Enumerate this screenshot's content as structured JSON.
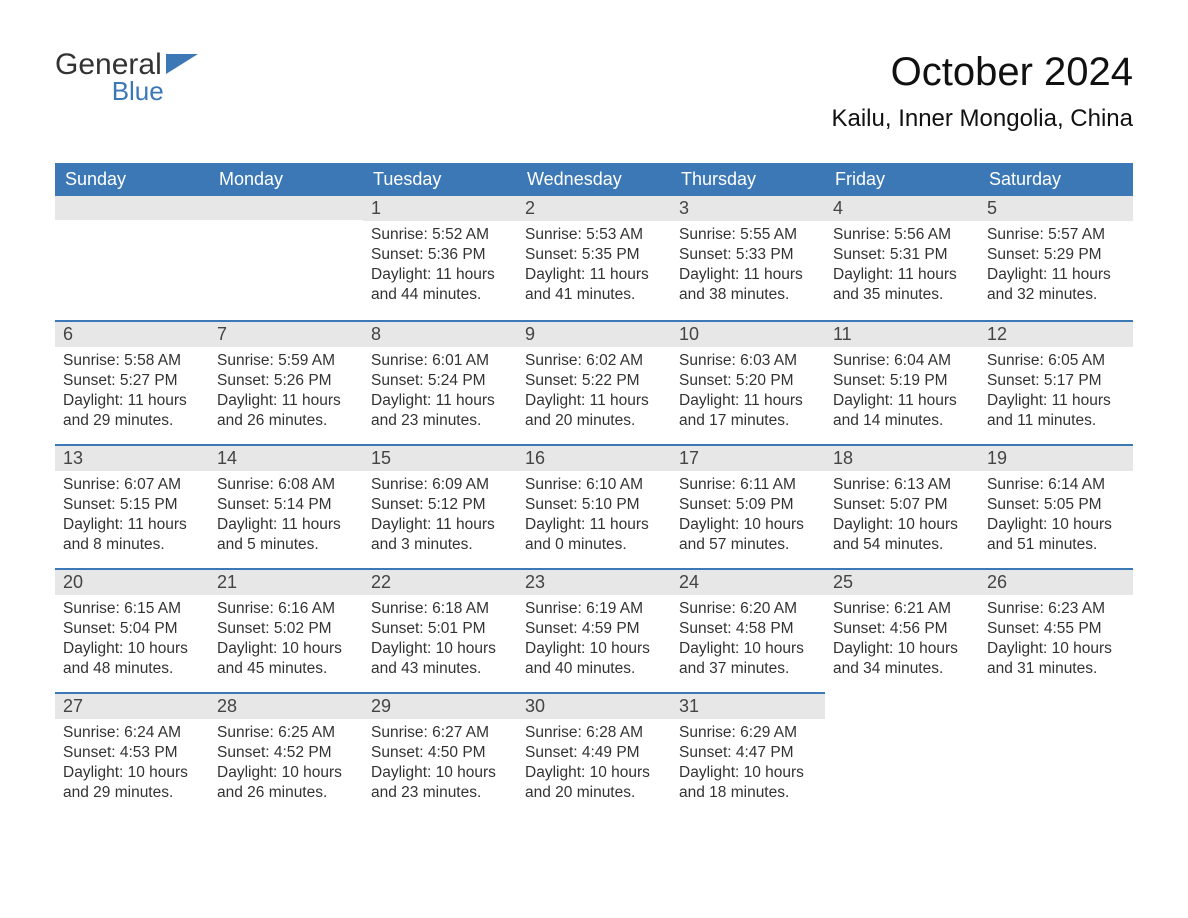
{
  "brand": {
    "top": "General",
    "bottom": "Blue",
    "flag_color": "#3b78b5"
  },
  "title": "October 2024",
  "location": "Kailu, Inner Mongolia, China",
  "colors": {
    "header_bg": "#3b78b5",
    "header_text": "#ffffff",
    "daynum_bg": "#e7e7e7",
    "daynum_border": "#3b78b5",
    "body_text": "#333333",
    "page_bg": "#ffffff"
  },
  "typography": {
    "title_fontsize": 40,
    "location_fontsize": 24,
    "dayheader_fontsize": 18,
    "daynum_fontsize": 18,
    "cell_fontsize": 15.5
  },
  "weekdays": [
    "Sunday",
    "Monday",
    "Tuesday",
    "Wednesday",
    "Thursday",
    "Friday",
    "Saturday"
  ],
  "weeks": [
    [
      {
        "blank": true
      },
      {
        "blank": true
      },
      {
        "n": "1",
        "sunrise": "5:52 AM",
        "sunset": "5:36 PM",
        "daylight": "11 hours and 44 minutes."
      },
      {
        "n": "2",
        "sunrise": "5:53 AM",
        "sunset": "5:35 PM",
        "daylight": "11 hours and 41 minutes."
      },
      {
        "n": "3",
        "sunrise": "5:55 AM",
        "sunset": "5:33 PM",
        "daylight": "11 hours and 38 minutes."
      },
      {
        "n": "4",
        "sunrise": "5:56 AM",
        "sunset": "5:31 PM",
        "daylight": "11 hours and 35 minutes."
      },
      {
        "n": "5",
        "sunrise": "5:57 AM",
        "sunset": "5:29 PM",
        "daylight": "11 hours and 32 minutes."
      }
    ],
    [
      {
        "n": "6",
        "sunrise": "5:58 AM",
        "sunset": "5:27 PM",
        "daylight": "11 hours and 29 minutes."
      },
      {
        "n": "7",
        "sunrise": "5:59 AM",
        "sunset": "5:26 PM",
        "daylight": "11 hours and 26 minutes."
      },
      {
        "n": "8",
        "sunrise": "6:01 AM",
        "sunset": "5:24 PM",
        "daylight": "11 hours and 23 minutes."
      },
      {
        "n": "9",
        "sunrise": "6:02 AM",
        "sunset": "5:22 PM",
        "daylight": "11 hours and 20 minutes."
      },
      {
        "n": "10",
        "sunrise": "6:03 AM",
        "sunset": "5:20 PM",
        "daylight": "11 hours and 17 minutes."
      },
      {
        "n": "11",
        "sunrise": "6:04 AM",
        "sunset": "5:19 PM",
        "daylight": "11 hours and 14 minutes."
      },
      {
        "n": "12",
        "sunrise": "6:05 AM",
        "sunset": "5:17 PM",
        "daylight": "11 hours and 11 minutes."
      }
    ],
    [
      {
        "n": "13",
        "sunrise": "6:07 AM",
        "sunset": "5:15 PM",
        "daylight": "11 hours and 8 minutes."
      },
      {
        "n": "14",
        "sunrise": "6:08 AM",
        "sunset": "5:14 PM",
        "daylight": "11 hours and 5 minutes."
      },
      {
        "n": "15",
        "sunrise": "6:09 AM",
        "sunset": "5:12 PM",
        "daylight": "11 hours and 3 minutes."
      },
      {
        "n": "16",
        "sunrise": "6:10 AM",
        "sunset": "5:10 PM",
        "daylight": "11 hours and 0 minutes."
      },
      {
        "n": "17",
        "sunrise": "6:11 AM",
        "sunset": "5:09 PM",
        "daylight": "10 hours and 57 minutes."
      },
      {
        "n": "18",
        "sunrise": "6:13 AM",
        "sunset": "5:07 PM",
        "daylight": "10 hours and 54 minutes."
      },
      {
        "n": "19",
        "sunrise": "6:14 AM",
        "sunset": "5:05 PM",
        "daylight": "10 hours and 51 minutes."
      }
    ],
    [
      {
        "n": "20",
        "sunrise": "6:15 AM",
        "sunset": "5:04 PM",
        "daylight": "10 hours and 48 minutes."
      },
      {
        "n": "21",
        "sunrise": "6:16 AM",
        "sunset": "5:02 PM",
        "daylight": "10 hours and 45 minutes."
      },
      {
        "n": "22",
        "sunrise": "6:18 AM",
        "sunset": "5:01 PM",
        "daylight": "10 hours and 43 minutes."
      },
      {
        "n": "23",
        "sunrise": "6:19 AM",
        "sunset": "4:59 PM",
        "daylight": "10 hours and 40 minutes."
      },
      {
        "n": "24",
        "sunrise": "6:20 AM",
        "sunset": "4:58 PM",
        "daylight": "10 hours and 37 minutes."
      },
      {
        "n": "25",
        "sunrise": "6:21 AM",
        "sunset": "4:56 PM",
        "daylight": "10 hours and 34 minutes."
      },
      {
        "n": "26",
        "sunrise": "6:23 AM",
        "sunset": "4:55 PM",
        "daylight": "10 hours and 31 minutes."
      }
    ],
    [
      {
        "n": "27",
        "sunrise": "6:24 AM",
        "sunset": "4:53 PM",
        "daylight": "10 hours and 29 minutes."
      },
      {
        "n": "28",
        "sunrise": "6:25 AM",
        "sunset": "4:52 PM",
        "daylight": "10 hours and 26 minutes."
      },
      {
        "n": "29",
        "sunrise": "6:27 AM",
        "sunset": "4:50 PM",
        "daylight": "10 hours and 23 minutes."
      },
      {
        "n": "30",
        "sunrise": "6:28 AM",
        "sunset": "4:49 PM",
        "daylight": "10 hours and 20 minutes."
      },
      {
        "n": "31",
        "sunrise": "6:29 AM",
        "sunset": "4:47 PM",
        "daylight": "10 hours and 18 minutes."
      },
      {
        "blank": true,
        "trailing": true
      },
      {
        "blank": true,
        "trailing": true
      }
    ]
  ],
  "labels": {
    "sunrise": "Sunrise: ",
    "sunset": "Sunset: ",
    "daylight": "Daylight: "
  }
}
